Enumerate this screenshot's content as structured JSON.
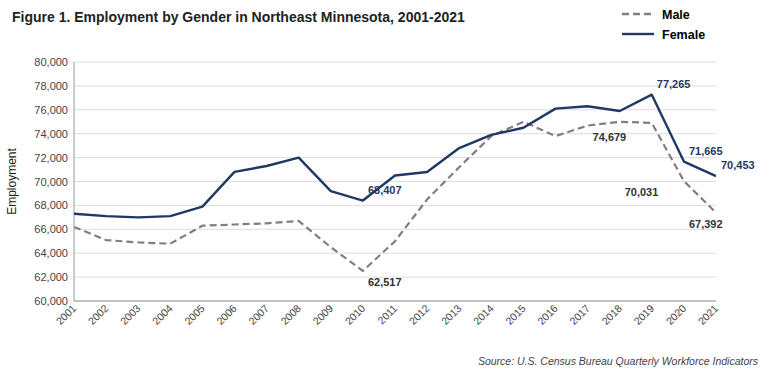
{
  "chart_data": {
    "type": "line",
    "title": "Figure 1. Employment by Gender in Northeast Minnesota, 2001-2021",
    "x": [
      2001,
      2002,
      2003,
      2004,
      2005,
      2006,
      2007,
      2008,
      2009,
      2010,
      2011,
      2012,
      2013,
      2014,
      2015,
      2016,
      2017,
      2018,
      2019,
      2020,
      2021
    ],
    "series": [
      {
        "name": "Male",
        "color": "#7f7f7f",
        "line_style": "dashed",
        "values": [
          66200,
          65100,
          64900,
          64800,
          66300,
          66400,
          66500,
          66700,
          64500,
          62517,
          65000,
          68500,
          71200,
          73800,
          75000,
          73800,
          74679,
          75000,
          74900,
          70031,
          67392
        ]
      },
      {
        "name": "Female",
        "color": "#1f3864",
        "line_style": "solid",
        "values": [
          67300,
          67100,
          67000,
          67100,
          67900,
          70800,
          71300,
          72000,
          69200,
          68407,
          70500,
          70800,
          72800,
          73900,
          74500,
          76100,
          76300,
          75900,
          77265,
          71665,
          70453
        ]
      }
    ],
    "ylabel": "Employment",
    "xlim": [
      2001,
      2021
    ],
    "xticks": [
      2001,
      2002,
      2003,
      2004,
      2005,
      2006,
      2007,
      2008,
      2009,
      2010,
      2011,
      2012,
      2013,
      2014,
      2015,
      2016,
      2017,
      2018,
      2019,
      2020,
      2021
    ],
    "ylim": [
      60000,
      80000
    ],
    "yticks": [
      {
        "value": 60000,
        "label": "60,000"
      },
      {
        "value": 62000,
        "label": "62,000"
      },
      {
        "value": 64000,
        "label": "64,000"
      },
      {
        "value": 66000,
        "label": "66,000"
      },
      {
        "value": 68000,
        "label": "68,000"
      },
      {
        "value": 70000,
        "label": "70,000"
      },
      {
        "value": 72000,
        "label": "72,000"
      },
      {
        "value": 74000,
        "label": "74,000"
      },
      {
        "value": 76000,
        "label": "76,000"
      },
      {
        "value": 78000,
        "label": "78,000"
      },
      {
        "value": 80000,
        "label": "80,000"
      }
    ],
    "grid": true,
    "legend": "upper right",
    "annotations": [
      {
        "text": "62,517",
        "x": 2010,
        "y": 62517,
        "series": "Male"
      },
      {
        "text": "74,679",
        "x": 2017,
        "y": 74679,
        "series": "Male"
      },
      {
        "text": "70,031",
        "x": 2018,
        "y": 70031,
        "series": "Male"
      },
      {
        "text": "67,392",
        "x": 2020,
        "y": 67392,
        "series": "Male"
      },
      {
        "text": "68,407",
        "x": 2010,
        "y": 68407,
        "series": "Female"
      },
      {
        "text": "77,265",
        "x": 2019,
        "y": 77265,
        "series": "Female"
      },
      {
        "text": "71,665",
        "x": 2020,
        "y": 71665,
        "series": "Female"
      },
      {
        "text": "70,453",
        "x": 2021,
        "y": 70453,
        "series": "Female"
      }
    ],
    "source": "Source: U.S. Census Bureau Quarterly Workforce Indicators"
  }
}
